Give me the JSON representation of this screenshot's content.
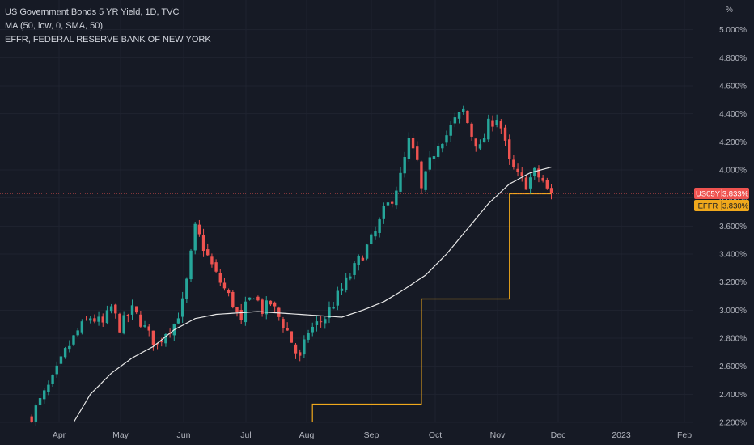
{
  "legend": {
    "line1": "US Government Bonds 5 YR Yield, 1D, TVC",
    "line2": "MA (50, low, 0, SMA, 50)",
    "line3": "EFFR, FEDERAL RESERVE BANK OF NEW YORK"
  },
  "colors": {
    "background": "#161a25",
    "up": "#26a69a",
    "down": "#ef5350",
    "ma": "#e8e8e8",
    "effr": "#f0a81c",
    "text": "#b2b5be",
    "grid": "#1f2330"
  },
  "chart_data": {
    "type": "candlestick",
    "y_unit": "%",
    "y_ticks": [
      "5.000%",
      "4.800%",
      "4.600%",
      "4.400%",
      "4.200%",
      "4.000%",
      "3.800%",
      "3.600%",
      "3.400%",
      "3.200%",
      "3.000%",
      "2.800%",
      "2.600%",
      "2.400%",
      "2.200%"
    ],
    "ylim": [
      2.2,
      5.05
    ],
    "x_ticks": [
      "Apr",
      "May",
      "Jun",
      "Jul",
      "Aug",
      "Sep",
      "Oct",
      "Nov",
      "Dec",
      "2023",
      "Feb"
    ],
    "price_series": {
      "name": "US05Y",
      "keypoints": [
        [
          1,
          2.25
        ],
        [
          3,
          2.35
        ],
        [
          6,
          2.5
        ],
        [
          9,
          2.7
        ],
        [
          12,
          2.85
        ],
        [
          15,
          2.95
        ],
        [
          18,
          2.9
        ],
        [
          20,
          3.02
        ],
        [
          22,
          2.88
        ],
        [
          25,
          3.0
        ],
        [
          27,
          2.92
        ],
        [
          29,
          2.82
        ],
        [
          31,
          2.75
        ],
        [
          33,
          2.85
        ],
        [
          35,
          2.9
        ],
        [
          37,
          3.05
        ],
        [
          38,
          3.2
        ],
        [
          40,
          3.58
        ],
        [
          41,
          3.52
        ],
        [
          43,
          3.38
        ],
        [
          45,
          3.25
        ],
        [
          47,
          3.15
        ],
        [
          49,
          3.05
        ],
        [
          51,
          2.9
        ],
        [
          52,
          3.02
        ],
        [
          54,
          3.12
        ],
        [
          56,
          3.0
        ],
        [
          58,
          3.05
        ],
        [
          60,
          2.95
        ],
        [
          62,
          2.85
        ],
        [
          64,
          2.7
        ],
        [
          65,
          2.65
        ],
        [
          67,
          2.85
        ],
        [
          69,
          2.9
        ],
        [
          71,
          2.95
        ],
        [
          73,
          3.05
        ],
        [
          75,
          3.15
        ],
        [
          77,
          3.25
        ],
        [
          79,
          3.35
        ],
        [
          81,
          3.45
        ],
        [
          83,
          3.55
        ],
        [
          85,
          3.7
        ],
        [
          87,
          3.8
        ],
        [
          89,
          3.95
        ],
        [
          91,
          4.2
        ],
        [
          93,
          4.05
        ],
        [
          94,
          3.85
        ],
        [
          96,
          4.05
        ],
        [
          98,
          4.2
        ],
        [
          100,
          4.25
        ],
        [
          102,
          4.35
        ],
        [
          104,
          4.42
        ],
        [
          106,
          4.25
        ],
        [
          108,
          4.15
        ],
        [
          110,
          4.32
        ],
        [
          112,
          4.38
        ],
        [
          113,
          4.3
        ],
        [
          115,
          4.05
        ],
        [
          117,
          3.95
        ],
        [
          119,
          3.9
        ],
        [
          121,
          3.98
        ],
        [
          123,
          3.92
        ],
        [
          124,
          3.85
        ],
        [
          125,
          3.833
        ]
      ]
    },
    "ma_series": {
      "name": "MA (50, low, 0, SMA, 50)",
      "keypoints": [
        [
          11,
          2.2
        ],
        [
          15,
          2.4
        ],
        [
          20,
          2.55
        ],
        [
          25,
          2.66
        ],
        [
          30,
          2.74
        ],
        [
          35,
          2.86
        ],
        [
          40,
          2.94
        ],
        [
          45,
          2.97
        ],
        [
          50,
          2.98
        ],
        [
          55,
          2.99
        ],
        [
          60,
          2.98
        ],
        [
          65,
          2.97
        ],
        [
          70,
          2.96
        ],
        [
          75,
          2.95
        ],
        [
          80,
          3.0
        ],
        [
          85,
          3.06
        ],
        [
          90,
          3.15
        ],
        [
          95,
          3.25
        ],
        [
          100,
          3.4
        ],
        [
          105,
          3.58
        ],
        [
          110,
          3.76
        ],
        [
          115,
          3.9
        ],
        [
          120,
          3.98
        ],
        [
          125,
          4.02
        ]
      ]
    },
    "effr_series": {
      "name": "EFFR",
      "steps": [
        [
          68,
          2.2
        ],
        [
          68,
          2.33
        ],
        [
          94,
          2.33
        ],
        [
          94,
          3.08
        ],
        [
          115,
          3.08
        ],
        [
          115,
          3.83
        ],
        [
          125,
          3.83
        ]
      ]
    },
    "last_labels": [
      {
        "name": "US05Y",
        "value": "3.833%",
        "level": 3.833
      },
      {
        "name": "EFFR",
        "value": "3.830%",
        "level": 3.83
      }
    ]
  }
}
